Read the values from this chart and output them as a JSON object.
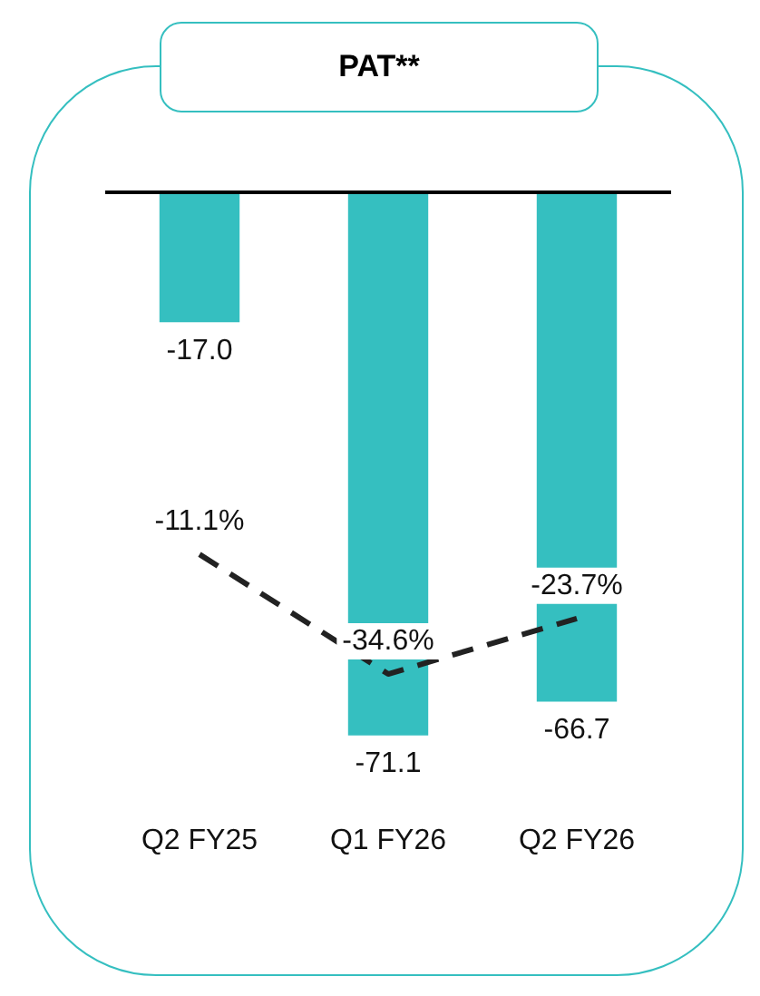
{
  "chart_data": {
    "type": "bar",
    "title": "PAT**",
    "categories": [
      "Q2 FY25",
      "Q1 FY26",
      "Q2 FY26"
    ],
    "tick_labels": "x",
    "legend": false,
    "series": [
      {
        "type": "bar",
        "color": "#35bfc0",
        "values": [
          -17.0,
          -71.1,
          -66.7
        ],
        "value_labels": [
          "-17.0",
          "-71.1",
          "-66.7"
        ]
      },
      {
        "type": "line",
        "axis": "y2",
        "color": "#222222",
        "values": [
          -11.1,
          -34.6,
          -23.7
        ],
        "value_labels": [
          "-11.1%",
          "-34.6%",
          "-23.7%"
        ],
        "line_style": "dashed",
        "marker": "none"
      }
    ]
  }
}
